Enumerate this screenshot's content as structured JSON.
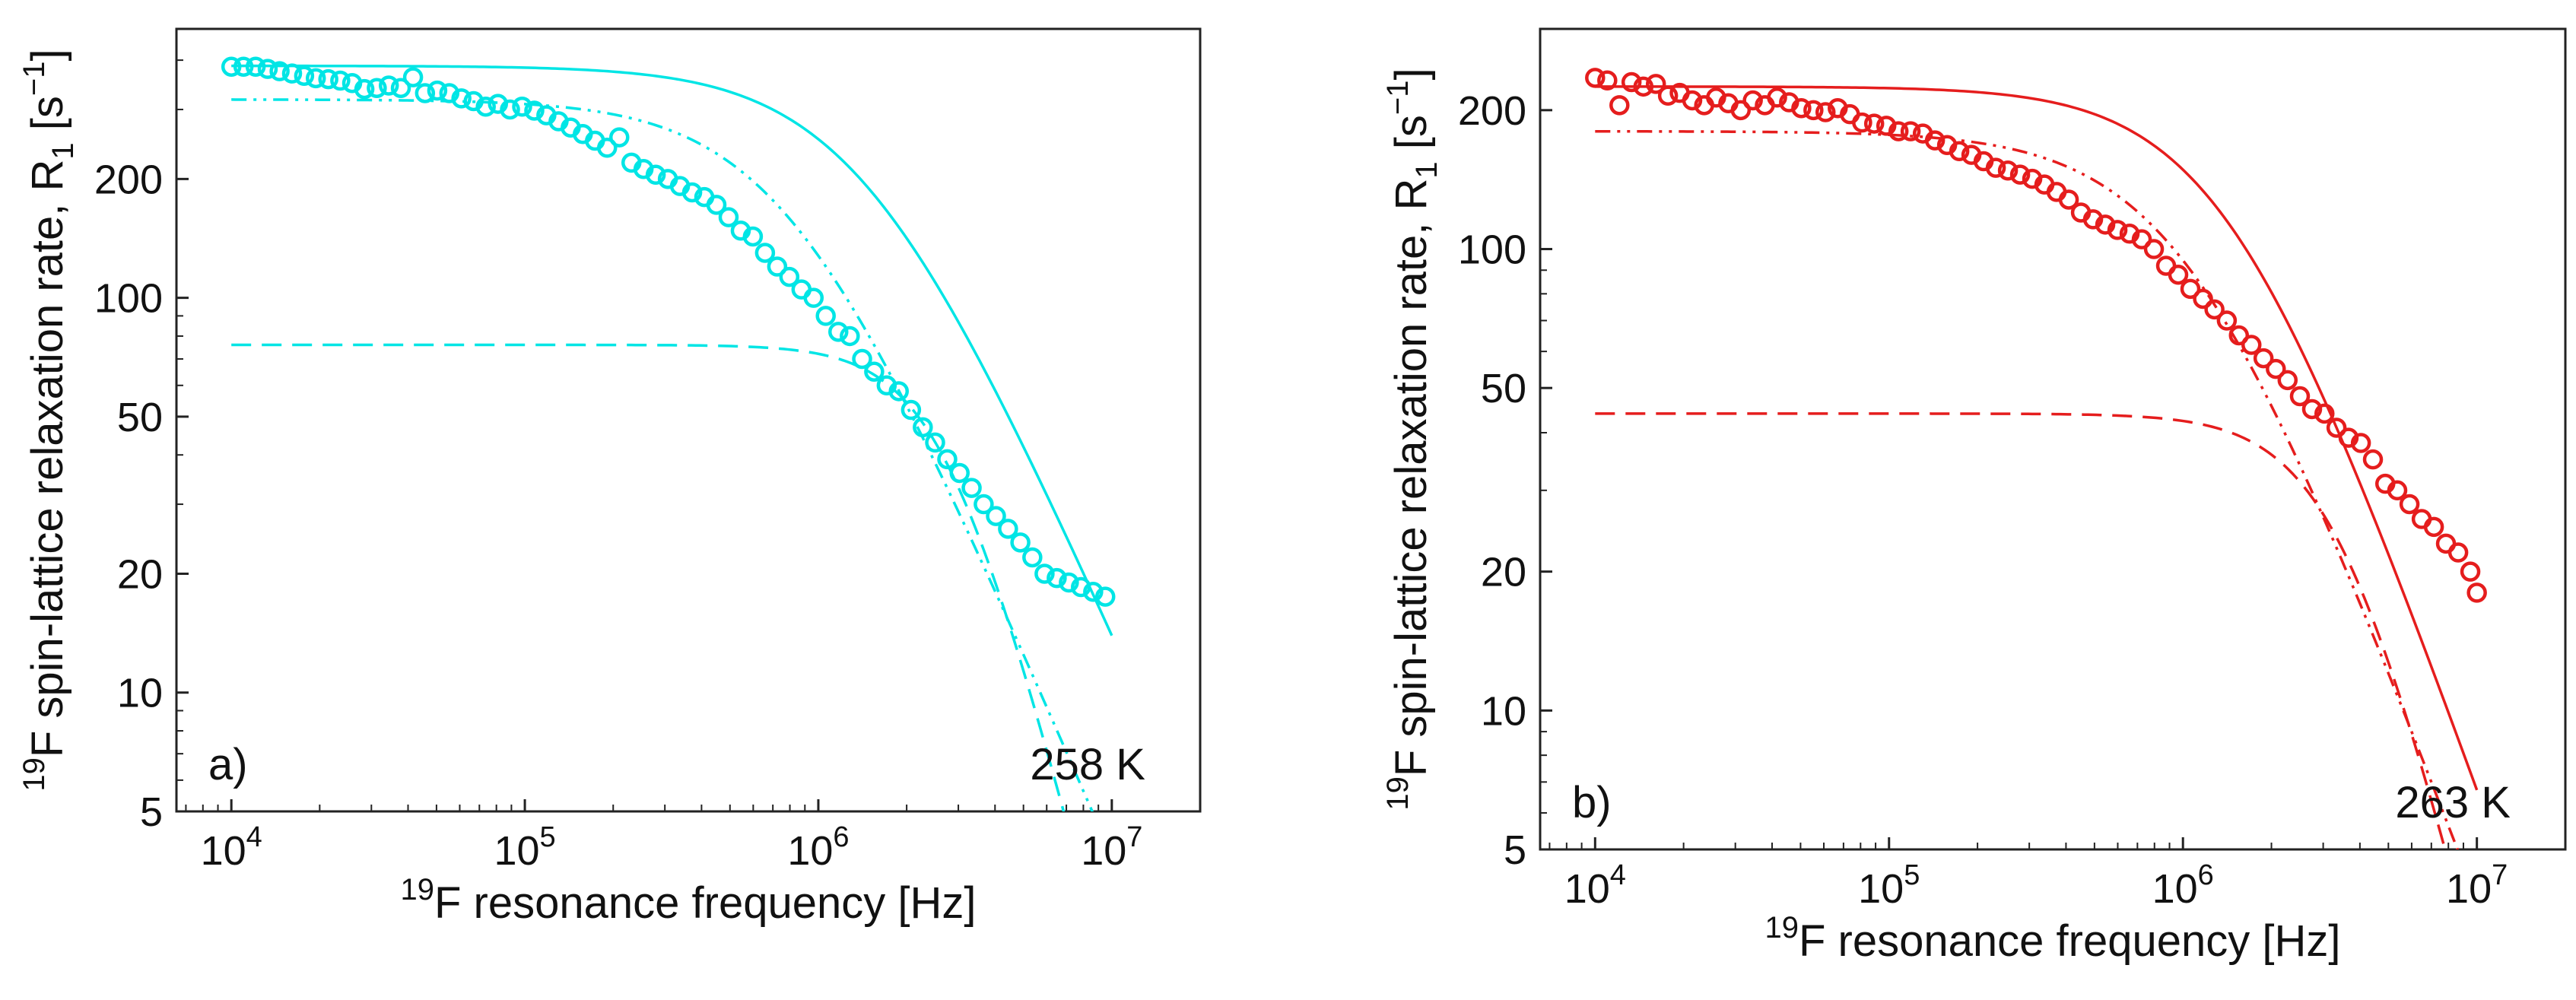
{
  "chart_data": [
    {
      "type": "scatter",
      "panel_label": "a)",
      "temperature_label": "258 K",
      "xlabel": {
        "sup": "19",
        "text": "F resonance frequency [Hz]"
      },
      "ylabel": {
        "sup": "19",
        "pre": "F spin-lattice relaxation rate, R",
        "sub": "1",
        "mid": " [s",
        "exp": "−1",
        "post": "]"
      },
      "x_scale": "log",
      "y_scale": "log",
      "xlim": [
        6500,
        20000000
      ],
      "ylim": [
        5,
        480
      ],
      "x_ticks": [
        {
          "value": 10000,
          "base": "10",
          "exp": "4"
        },
        {
          "value": 100000,
          "base": "10",
          "exp": "5"
        },
        {
          "value": 1000000,
          "base": "10",
          "exp": "6"
        },
        {
          "value": 10000000,
          "base": "10",
          "exp": "7"
        }
      ],
      "y_ticks": [
        {
          "value": 5,
          "label": "5"
        },
        {
          "value": 10,
          "label": "10"
        },
        {
          "value": 20,
          "label": "20"
        },
        {
          "value": 50,
          "label": "50"
        },
        {
          "value": 100,
          "label": "100"
        },
        {
          "value": 200,
          "label": "200"
        }
      ],
      "color": "#00e5e5",
      "grid": false,
      "series": [
        {
          "kind": "points",
          "marker": "open-circle",
          "x": [
            10000,
            11000,
            12100,
            13300,
            14600,
            16100,
            17700,
            19400,
            21400,
            23500,
            25800,
            28400,
            31300,
            34400,
            37800,
            41600,
            45700,
            50300,
            55300,
            60800,
            66900,
            73600,
            81000,
            89000,
            97900,
            107700,
            118400,
            130300,
            143300,
            157600,
            173400,
            190700,
            209800,
            230800,
            253800,
            279200,
            307100,
            337800,
            371600,
            408800,
            449700,
            494600,
            544100,
            598500,
            658300,
            724200,
            796600,
            876200,
            963800,
            1060000,
            1170000,
            1280000,
            1410000,
            1550000,
            1710000,
            1880000,
            2070000,
            2270000,
            2500000,
            2750000,
            3030000,
            3330000,
            3660000,
            4030000,
            4430000,
            4880000,
            5360000,
            5900000,
            6490000,
            7140000,
            7850000,
            8640000,
            9500000
          ],
          "y": [
            385,
            385,
            385,
            380,
            375,
            370,
            365,
            360,
            358,
            355,
            350,
            338,
            340,
            345,
            340,
            362,
            330,
            335,
            330,
            320,
            315,
            305,
            310,
            300,
            305,
            298,
            290,
            280,
            270,
            260,
            250,
            240,
            255,
            220,
            212,
            205,
            200,
            192,
            185,
            180,
            172,
            160,
            148,
            143,
            130,
            120,
            113,
            105,
            100,
            90,
            82,
            80,
            70,
            65,
            60,
            58,
            52,
            47,
            43,
            39,
            36,
            33,
            30,
            28,
            26,
            24,
            22,
            20,
            19.5,
            19,
            18.5,
            18,
            17.5
          ]
        },
        {
          "kind": "fit",
          "style": "solid",
          "r0": 387,
          "tau": 1.1e-07,
          "k": 0.85
        },
        {
          "kind": "fit",
          "style": "dash-dot-dot",
          "r0": 318,
          "tau": 2e-07,
          "k": 0.87
        },
        {
          "kind": "fit",
          "style": "dashed",
          "r0": 76,
          "tau": 5.8e-08,
          "k": 1.45
        }
      ]
    },
    {
      "type": "scatter",
      "panel_label": "b)",
      "temperature_label": "263 K",
      "xlabel": {
        "sup": "19",
        "text": "F resonance frequency [Hz]"
      },
      "ylabel": {
        "sup": "19",
        "pre": "F spin-lattice relaxation rate, R",
        "sub": "1",
        "mid": " [s",
        "exp": "−1",
        "post": "]"
      },
      "x_scale": "log",
      "y_scale": "log",
      "xlim": [
        6500,
        20000000
      ],
      "ylim": [
        5,
        300
      ],
      "x_ticks": [
        {
          "value": 10000,
          "base": "10",
          "exp": "4"
        },
        {
          "value": 100000,
          "base": "10",
          "exp": "5"
        },
        {
          "value": 1000000,
          "base": "10",
          "exp": "6"
        },
        {
          "value": 10000000,
          "base": "10",
          "exp": "7"
        }
      ],
      "y_ticks": [
        {
          "value": 5,
          "label": "5"
        },
        {
          "value": 10,
          "label": "10"
        },
        {
          "value": 20,
          "label": "20"
        },
        {
          "value": 50,
          "label": "50"
        },
        {
          "value": 100,
          "label": "100"
        },
        {
          "value": 200,
          "label": "200"
        }
      ],
      "color": "#e51d1d",
      "grid": false,
      "series": [
        {
          "kind": "points",
          "marker": "open-circle",
          "x": [
            10000,
            11000,
            12100,
            13300,
            14600,
            16100,
            17700,
            19400,
            21400,
            23500,
            25800,
            28400,
            31300,
            34400,
            37800,
            41600,
            45700,
            50300,
            55300,
            60800,
            66900,
            73600,
            81000,
            89000,
            97900,
            107700,
            118400,
            130300,
            143300,
            157600,
            173400,
            190700,
            209800,
            230800,
            253800,
            279200,
            307100,
            337800,
            371600,
            408800,
            449700,
            494600,
            544100,
            598500,
            658300,
            724200,
            796600,
            876200,
            963800,
            1060000,
            1170000,
            1280000,
            1410000,
            1550000,
            1710000,
            1880000,
            2070000,
            2270000,
            2500000,
            2750000,
            3030000,
            3330000,
            3660000,
            4030000,
            4430000,
            4880000,
            5360000,
            5900000,
            6490000,
            7140000,
            7850000,
            8640000,
            9500000,
            10000000
          ],
          "y": [
            235,
            232,
            205,
            230,
            225,
            228,
            215,
            218,
            210,
            205,
            213,
            207,
            200,
            210,
            205,
            213,
            208,
            202,
            200,
            198,
            202,
            196,
            188,
            187,
            185,
            180,
            180,
            178,
            172,
            168,
            163,
            160,
            155,
            150,
            148,
            145,
            142,
            138,
            133,
            128,
            120,
            116,
            113,
            110,
            108,
            105,
            100,
            92,
            88,
            82,
            78,
            74,
            70,
            65,
            62,
            58,
            55,
            52,
            48,
            45,
            44,
            41,
            39,
            38,
            35,
            31,
            30,
            28,
            26,
            25,
            23,
            22,
            20,
            18
          ]
        },
        {
          "kind": "fit",
          "style": "solid",
          "r0": 225,
          "tau": 1.1e-07,
          "k": 0.9
        },
        {
          "kind": "fit",
          "style": "dash-dot-dot",
          "r0": 180,
          "tau": 1.5e-07,
          "k": 0.85
        },
        {
          "kind": "fit",
          "style": "dashed",
          "r0": 44,
          "tau": 4.5e-08,
          "k": 1.3
        }
      ]
    }
  ]
}
